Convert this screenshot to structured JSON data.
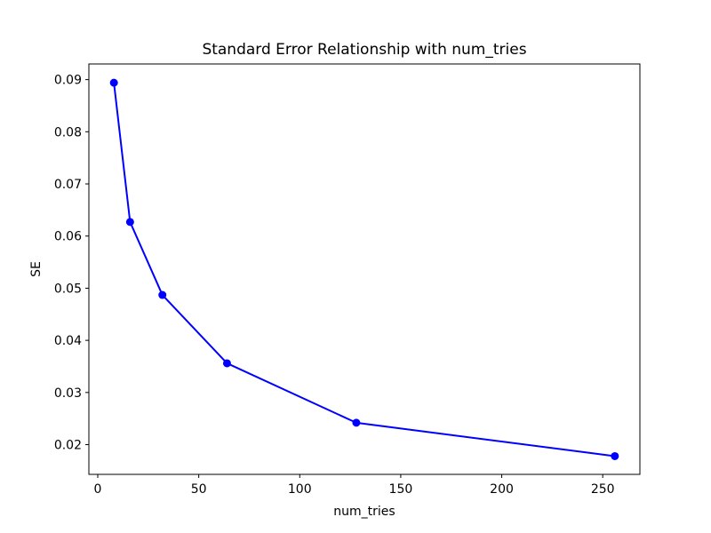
{
  "figure": {
    "background": "#ffffff",
    "title": "Standard Error Relationship with num_tries",
    "xlabel": "num_tries",
    "ylabel": "SE"
  },
  "chart_data": {
    "type": "line",
    "title": "Standard Error Relationship with num_tries",
    "xlabel": "num_tries",
    "ylabel": "SE",
    "x": [
      8,
      16,
      32,
      64,
      128,
      256
    ],
    "y": [
      0.0894,
      0.0627,
      0.0487,
      0.0356,
      0.0242,
      0.0178
    ],
    "line_color": "#0000ff",
    "marker": "circle",
    "marker_color": "#0000ff",
    "xlim": [
      -4.4,
      268.4
    ],
    "ylim": [
      0.0143,
      0.093
    ],
    "x_ticks": [
      0,
      50,
      100,
      150,
      200,
      250
    ],
    "x_tick_labels": [
      "0",
      "50",
      "100",
      "150",
      "200",
      "250"
    ],
    "y_ticks": [
      0.02,
      0.03,
      0.04,
      0.05,
      0.06,
      0.07,
      0.08,
      0.09
    ],
    "y_tick_labels": [
      "0.02",
      "0.03",
      "0.04",
      "0.05",
      "0.06",
      "0.07",
      "0.08",
      "0.09"
    ],
    "grid": false,
    "legend": null,
    "axis_color": "#000000",
    "text_color": "#000000"
  }
}
